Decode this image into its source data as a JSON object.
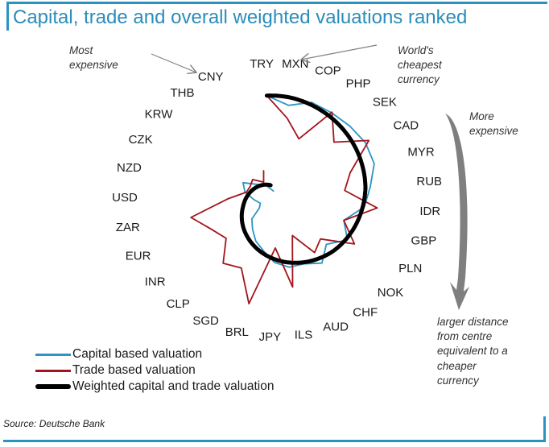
{
  "title": "Capital, trade and overall weighted valuations ranked",
  "colors": {
    "frame": "#2a93c0",
    "capital": "#2b95c4",
    "trade": "#a3141c",
    "weighted": "#000000",
    "arrow": "#808080"
  },
  "annotations": {
    "most_expensive": [
      "Most",
      "expensive"
    ],
    "worlds_cheapest": [
      "World's",
      "cheapest",
      "currency"
    ],
    "more_expensive": [
      "More",
      "expensive"
    ],
    "distance_note": [
      "larger distance",
      "from centre",
      "equivalent to a",
      "cheaper",
      "currency"
    ]
  },
  "source": "Source: Deutsche Bank",
  "chart_data": {
    "type": "line",
    "subtype": "radial-spiral",
    "title": "Capital, trade and overall weighted valuations ranked",
    "categories": [
      "TRY",
      "MXN",
      "COP",
      "PHP",
      "SEK",
      "CAD",
      "MYR",
      "RUB",
      "IDR",
      "GBP",
      "PLN",
      "NOK",
      "CHF",
      "AUD",
      "ILS",
      "JPY",
      "BRL",
      "SGD",
      "CLP",
      "INR",
      "EUR",
      "ZAR",
      "USD",
      "NZD",
      "CZK",
      "KRW",
      "THB",
      "CNY"
    ],
    "value_meaning": "distance from centre (larger = cheaper currency)",
    "series": [
      {
        "name": "Capital based valuation",
        "color": "#2b95c4",
        "values": [
          130,
          118,
          128,
          127,
          128,
          130,
          128,
          116,
          108,
          86,
          100,
          82,
          96,
          86,
          85,
          78,
          66,
          58,
          48,
          40,
          25,
          22,
          30,
          42,
          48,
          30,
          22,
          12
        ]
      },
      {
        "name": "Trade based valuation",
        "color": "#a3141c",
        "values": [
          130,
          102,
          80,
          128,
          100,
          135,
          96,
          84,
          124,
          86,
          110,
          72,
          80,
          48,
          110,
          60,
          134,
          96,
          104,
          80,
          90,
          110,
          62,
          40,
          38,
          40,
          28,
          40
        ]
      },
      {
        "name": "Weighted capital and trade valuation",
        "color": "#000000",
        "values": [
          130,
          128,
          125,
          122,
          119,
          116,
          113,
          110,
          106,
          102,
          98,
          94,
          89,
          84,
          79,
          74,
          69,
          64,
          59,
          54,
          49,
          44,
          40,
          36,
          32,
          28,
          24,
          20
        ]
      }
    ],
    "legend_position": "bottom-left"
  }
}
